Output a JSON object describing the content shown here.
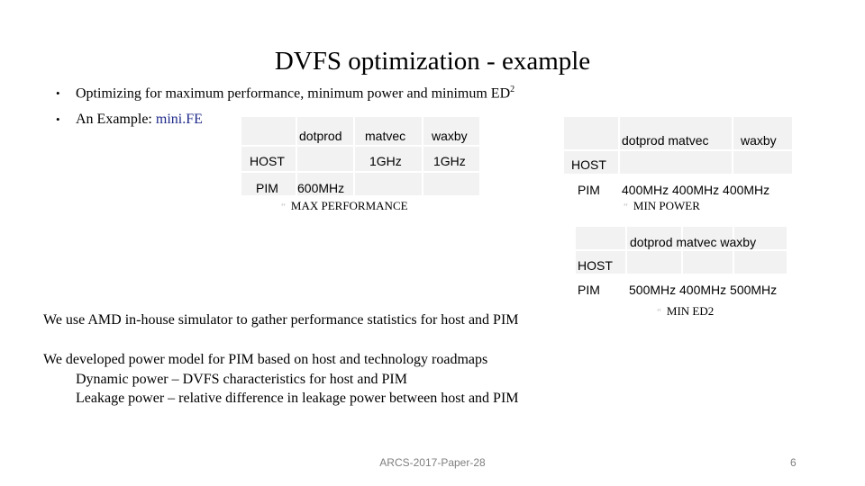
{
  "slide": {
    "title": "DVFS optimization - example",
    "bullets": [
      {
        "text": "Optimizing for maximum performance, minimum power and minimum ED",
        "sup": "2"
      },
      {
        "text": "An Example: ",
        "highlight": "mini.FE"
      }
    ],
    "table_max_perf": {
      "headers": [
        "dotprod",
        "matvec",
        "waxby"
      ],
      "host_label": "HOST",
      "host_values": [
        "",
        "1GHz",
        "1GHz"
      ],
      "pim_label": "PIM",
      "pim_values": [
        "600MHz",
        "",
        ""
      ],
      "note_mark": "“",
      "note": "MAX PERFORMANCE"
    },
    "table_min_power": {
      "headers": "dotprod matvec",
      "header3": "waxby",
      "host_label": "HOST",
      "pim_label": "PIM",
      "pim_values": "400MHz 400MHz 400MHz",
      "note_mark": "“",
      "note": "MIN POWER"
    },
    "table_min_ed2": {
      "headers": "dotprod matvec waxby",
      "host_label": "HOST",
      "pim_label": "PIM",
      "pim_values": "500MHz 400MHz 500MHz",
      "note_mark": "“",
      "note": "MIN ED2"
    },
    "paragraphs": [
      "We use AMD in-house simulator to gather performance statistics for host and PIM",
      "We developed power model for PIM based on host and technology roadmaps",
      "Dynamic power – DVFS characteristics for host and PIM",
      "Leakage power – relative difference in leakage power between host and PIM"
    ],
    "footer": "ARCS-2017-Paper-28",
    "page_number": "6",
    "colors": {
      "accent_blue": "#1f2a8a",
      "cell_bg": "#f2f2f2",
      "footer_gray": "#7f7f7f"
    }
  }
}
